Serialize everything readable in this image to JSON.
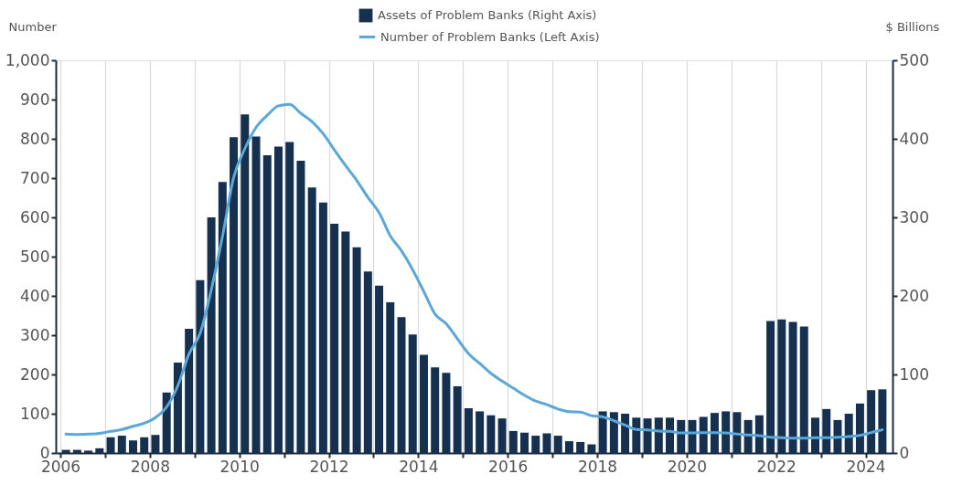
{
  "chart_data": {
    "type": "bar",
    "ylabel": "Number",
    "y2label": "$ Billions",
    "x": [
      2006.125,
      2006.375,
      2006.625,
      2006.875,
      2007.125,
      2007.375,
      2007.625,
      2007.875,
      2008.125,
      2008.375,
      2008.625,
      2008.875,
      2009.125,
      2009.375,
      2009.625,
      2009.875,
      2010.125,
      2010.375,
      2010.625,
      2010.875,
      2011.125,
      2011.375,
      2011.625,
      2011.875,
      2012.125,
      2012.375,
      2012.625,
      2012.875,
      2013.125,
      2013.375,
      2013.625,
      2013.875,
      2014.125,
      2014.375,
      2014.625,
      2014.875,
      2015.125,
      2015.375,
      2015.625,
      2015.875,
      2016.125,
      2016.375,
      2016.625,
      2016.875,
      2017.125,
      2017.375,
      2017.625,
      2017.875,
      2018.125,
      2018.375,
      2018.625,
      2018.875,
      2019.125,
      2019.375,
      2019.625,
      2019.875,
      2020.125,
      2020.375,
      2020.625,
      2020.875,
      2021.125,
      2021.375,
      2021.625,
      2021.875,
      2022.125,
      2022.375,
      2022.625,
      2022.875,
      2023.125,
      2023.375,
      2023.625,
      2023.875,
      2024.125,
      2024.375
    ],
    "series": [
      {
        "name": "Assets of Problem Banks (Right Axis)",
        "axis": "y2",
        "color": "#16304f",
        "values": [
          4,
          4,
          3,
          6,
          20,
          22,
          16,
          20,
          23,
          77,
          115,
          158,
          220,
          300,
          345,
          402,
          431,
          403,
          379,
          390,
          396,
          372,
          338,
          319,
          292,
          282,
          262,
          231,
          213,
          192,
          173,
          151,
          125,
          109,
          102,
          85,
          57,
          53,
          48,
          44,
          28,
          26,
          22,
          25,
          22,
          15,
          14,
          11,
          53,
          52,
          50,
          45,
          44,
          45,
          45,
          42,
          42,
          46,
          51,
          53,
          52,
          42,
          48,
          168,
          170,
          167,
          161,
          45,
          56,
          42,
          50,
          63,
          80,
          81
        ]
      },
      {
        "name": "Number of Problem Banks (Left Axis)",
        "type": "line",
        "color": "#5ba7d8",
        "values": [
          48,
          47,
          48,
          50,
          55,
          60,
          68,
          76,
          90,
          117,
          171,
          252,
          305,
          416,
          552,
          702,
          775,
          829,
          860,
          884,
          888,
          865,
          844,
          813,
          772,
          732,
          694,
          651,
          612,
          553,
          515,
          467,
          411,
          354,
          329,
          291,
          253,
          228,
          203,
          183,
          165,
          147,
          132,
          123,
          112,
          105,
          104,
          95,
          92,
          82,
          71,
          60,
          59,
          56,
          55,
          51,
          51,
          52,
          52,
          51,
          48,
          46,
          44,
          40,
          39,
          38,
          38,
          39,
          39,
          40,
          42,
          45,
          52,
          59
        ]
      }
    ],
    "xlim": [
      2006,
      2024.5
    ],
    "xticks": [
      2006,
      {
        "value": 2007,
        "label": null
      },
      2008,
      {
        "value": 2009,
        "label": null
      },
      2010,
      {
        "value": 2011,
        "label": null
      },
      2012,
      {
        "value": 2013,
        "label": null
      },
      2014,
      {
        "value": 2015,
        "label": null
      },
      2016,
      {
        "value": 2017,
        "label": null
      },
      2018,
      {
        "value": 2019,
        "label": null
      },
      2020,
      {
        "value": 2021,
        "label": null
      },
      2022,
      {
        "value": 2023,
        "label": null
      },
      2024
    ],
    "ylim": [
      0,
      1000
    ],
    "yticks": [
      0,
      100,
      200,
      300,
      400,
      500,
      600,
      700,
      800,
      900,
      {
        "value": 1000,
        "label": "1,000"
      }
    ],
    "y2lim": [
      0,
      500
    ],
    "y2ticks": [
      0,
      100,
      200,
      300,
      400,
      500
    ],
    "grid": "x",
    "legend": "top"
  }
}
